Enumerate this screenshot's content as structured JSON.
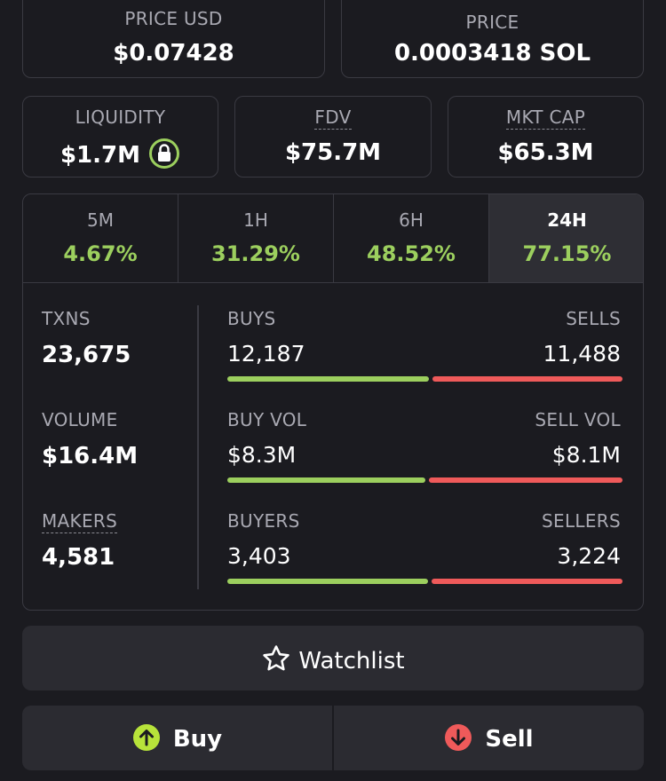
{
  "price_usd": {
    "label": "PRICE USD",
    "value": "$0.07428"
  },
  "price_native": {
    "label": "PRICE",
    "value": "0.0003418 SOL"
  },
  "liquidity": {
    "label": "LIQUIDITY",
    "value": "$1.7M"
  },
  "fdv": {
    "label": "FDV",
    "value": "$75.7M"
  },
  "mkt_cap": {
    "label": "MKT CAP",
    "value": "$65.3M"
  },
  "timeframes": [
    {
      "label": "5M",
      "change": "4.67%"
    },
    {
      "label": "1H",
      "change": "31.29%"
    },
    {
      "label": "6H",
      "change": "48.52%"
    },
    {
      "label": "24H",
      "change": "77.15%",
      "active": true
    }
  ],
  "stats": [
    {
      "label": "TXNS",
      "value": "23,675"
    },
    {
      "label": "VOLUME",
      "value": "$16.4M"
    },
    {
      "label": "MAKERS",
      "value": "4,581"
    }
  ],
  "splits": [
    {
      "left": {
        "title": "BUYS",
        "value": 12187,
        "label": "12,187"
      },
      "right": {
        "title": "SELLS",
        "value": 11488,
        "label": "11,488"
      }
    },
    {
      "left": {
        "title": "BUY VOL",
        "value": 8300000,
        "label": "$8.3M"
      },
      "right": {
        "title": "SELL VOL",
        "value": 8100000,
        "label": "$8.1M"
      }
    },
    {
      "left": {
        "title": "BUYERS",
        "value": 3403,
        "label": "3,403"
      },
      "right": {
        "title": "SELLERS",
        "value": 3224,
        "label": "3,224"
      }
    }
  ],
  "buttons": {
    "watchlist": "Watchlist",
    "buy": "Buy",
    "sell": "Sell"
  }
}
